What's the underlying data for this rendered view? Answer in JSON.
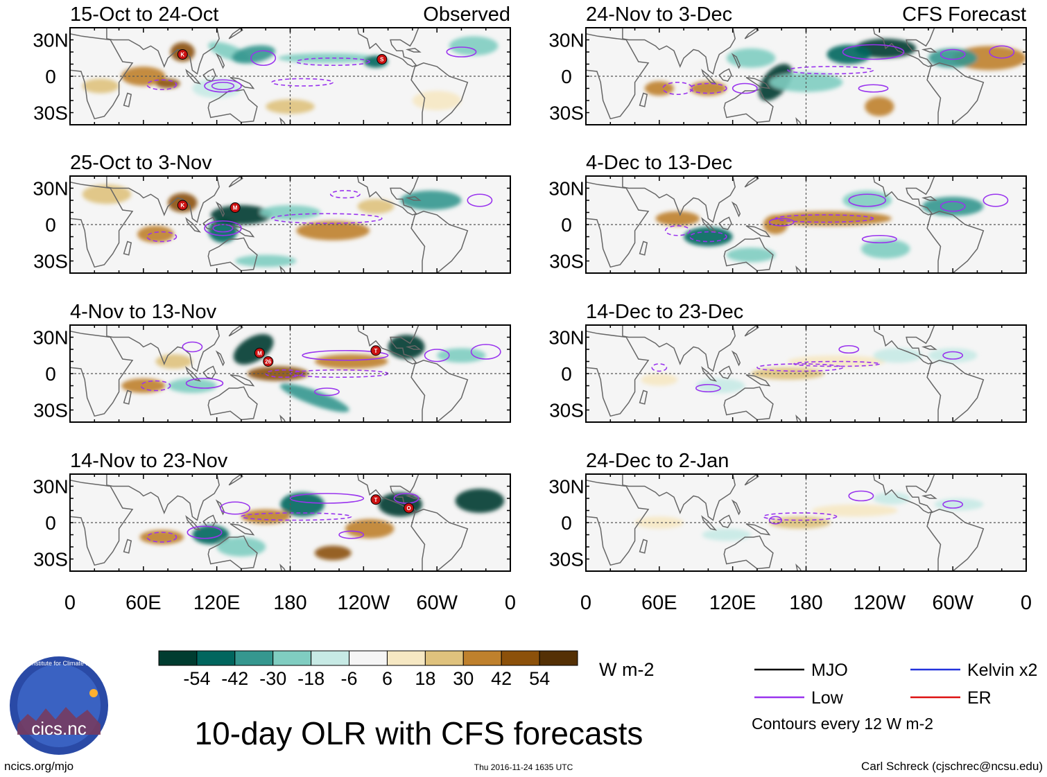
{
  "title": "10-day OLR with CFS forecasts",
  "labels": {
    "observed": "Observed",
    "forecast": "CFS Forecast"
  },
  "panels": {
    "observed": [
      {
        "period": "15-Oct to 24-Oct"
      },
      {
        "period": "25-Oct to 3-Nov"
      },
      {
        "period": "4-Nov to 13-Nov"
      },
      {
        "period": "14-Nov to 23-Nov"
      }
    ],
    "forecast": [
      {
        "period": "24-Nov to 3-Dec"
      },
      {
        "period": "4-Dec to 13-Dec"
      },
      {
        "period": "14-Dec to 23-Dec"
      },
      {
        "period": "24-Dec to 2-Jan"
      }
    ]
  },
  "axes": {
    "lat_ticks": [
      "30N",
      "0",
      "30S"
    ],
    "lon_ticks": [
      "0",
      "60E",
      "120E",
      "180",
      "120W",
      "60W",
      "0"
    ],
    "lon_values": [
      0,
      60,
      120,
      180,
      240,
      300,
      360
    ],
    "lat_values": [
      30,
      0,
      -30
    ],
    "lat_range": [
      -40,
      40
    ]
  },
  "colorbar": {
    "labels": [
      "-54",
      "-42",
      "-30",
      "-18",
      "-6",
      "6",
      "18",
      "30",
      "42",
      "54"
    ],
    "colors": [
      "#003c30",
      "#01665e",
      "#35978f",
      "#80cdc1",
      "#c7eae5",
      "#f5f5f5",
      "#f6e8c3",
      "#dfc27d",
      "#bf812d",
      "#8c510a",
      "#543005"
    ],
    "units": "W m-2"
  },
  "legend": {
    "items": [
      {
        "label": "MJO",
        "color": "#000000"
      },
      {
        "label": "Kelvin x2",
        "color": "#2233dd"
      },
      {
        "label": "Low",
        "color": "#9933ee"
      },
      {
        "label": "ER",
        "color": "#dd1111"
      }
    ],
    "note": "Contours every 12 W m-2"
  },
  "storms": [
    {
      "panel": 0,
      "letter": "K",
      "lon": 92,
      "lat": 18
    },
    {
      "panel": 0,
      "letter": "S",
      "lon": 255,
      "lat": 14
    },
    {
      "panel": 1,
      "letter": "K",
      "lon": 92,
      "lat": 16
    },
    {
      "panel": 1,
      "letter": "M",
      "lon": 135,
      "lat": 14
    },
    {
      "panel": 2,
      "letter": "M",
      "lon": 155,
      "lat": 17
    },
    {
      "panel": 2,
      "letter": "26",
      "lon": 162,
      "lat": 10
    },
    {
      "panel": 2,
      "letter": "T",
      "lon": 250,
      "lat": 19
    },
    {
      "panel": 3,
      "letter": "T",
      "lon": 250,
      "lat": 19
    },
    {
      "panel": 3,
      "letter": "O",
      "lon": 277,
      "lat": 12
    }
  ],
  "footer": {
    "left": "ncics.org/mjo",
    "center": "Thu 2016-11-24 1635 UTC",
    "right": "Carl Schreck (cjschrec@ncsu.edu)"
  },
  "logo": {
    "text": "cics.nc",
    "ring_text": "Cooperative Institute for Climate and Satellites"
  }
}
